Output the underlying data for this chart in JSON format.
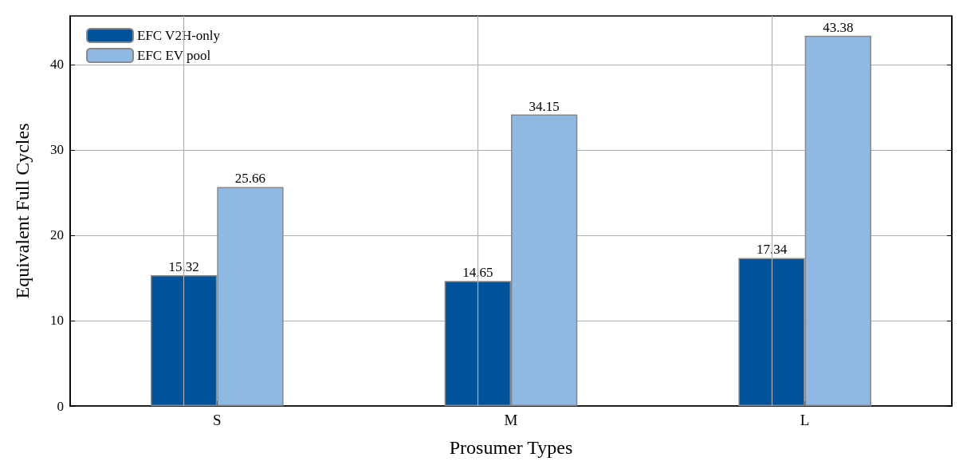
{
  "chart_data": {
    "type": "bar",
    "xlabel": "Prosumer Types",
    "ylabel": "Equivalent Full Cycles",
    "categories": [
      "S",
      "M",
      "L"
    ],
    "series": [
      {
        "name": "EFC V2H-only",
        "color": "#00539b",
        "values": [
          15.32,
          14.65,
          17.34
        ]
      },
      {
        "name": "EFC EV pool",
        "color": "#8fb8e3",
        "values": [
          25.66,
          34.15,
          43.38
        ]
      }
    ],
    "ylim": [
      0,
      45.7
    ],
    "yticks": [
      0,
      10,
      20,
      30,
      40
    ],
    "grid": true,
    "legend": "top left",
    "data_labels": true
  }
}
